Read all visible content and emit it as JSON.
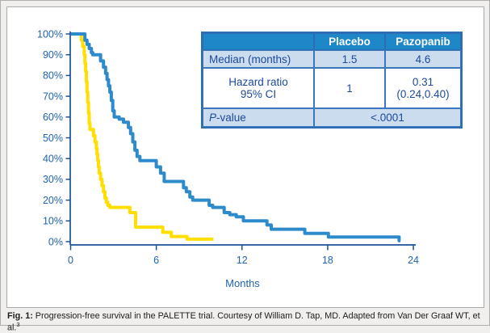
{
  "figure": {
    "caption_prefix": "Fig. 1:",
    "caption_text": " Progression-free survival in the PALETTE trial. Courtesy of William D. Tap, MD. Adapted from Van Der Graaf WT, et al.",
    "caption_superscript": "3"
  },
  "table": {
    "col_headers": {
      "placebo": "Placebo",
      "pazopanib": "Pazopanib"
    },
    "row_median": {
      "label": "Median (months)",
      "placebo": "1.5",
      "pazopanib": "4.6"
    },
    "row_hazard": {
      "label_line1": "Hazard ratio",
      "label_line2": "95% CI",
      "placebo": "1",
      "pazopanib_line1": "0.31",
      "pazopanib_line2": "(0.24,0.40)"
    },
    "row_pvalue": {
      "label_italic": "P",
      "label_rest": "-value",
      "value": "<.0001"
    }
  },
  "colors": {
    "table_header_blue": "#1e87c8",
    "table_row_light_blue": "#cbdcef",
    "table_border_blue": "#2e6db4",
    "axis_blue": "#1a5096",
    "tick_label_blue": "#2063ae",
    "curve_blue": "#2e8bcb",
    "curve_yellow": "#ffde00"
  },
  "chart_data": {
    "type": "line",
    "subtype": "kaplan-meier-step",
    "title": "",
    "xlabel": "Months",
    "ylabel": "",
    "xlim": [
      0,
      24
    ],
    "ylim": [
      0,
      100
    ],
    "grid": false,
    "legend": "none (groups identified in embedded table)",
    "xticks": [
      {
        "v": 0,
        "label": "0"
      },
      {
        "v": 6,
        "label": "6"
      },
      {
        "v": 12,
        "label": "12"
      },
      {
        "v": 18,
        "label": "18"
      },
      {
        "v": 24,
        "label": "24"
      }
    ],
    "yticks": [
      {
        "v": 0,
        "label": "0%"
      },
      {
        "v": 10,
        "label": "10%"
      },
      {
        "v": 20,
        "label": "20%"
      },
      {
        "v": 30,
        "label": "30%"
      },
      {
        "v": 40,
        "label": "40%"
      },
      {
        "v": 50,
        "label": "50%"
      },
      {
        "v": 60,
        "label": "60%"
      },
      {
        "v": 70,
        "label": "70%"
      },
      {
        "v": 80,
        "label": "80%"
      },
      {
        "v": 90,
        "label": "90%"
      },
      {
        "v": 100,
        "label": "100%"
      }
    ],
    "series": [
      {
        "name": "Placebo",
        "color": "#ffde00",
        "median_months": 1.5,
        "end_x": 10.0,
        "steps": [
          [
            0,
            100
          ],
          [
            0.75,
            97
          ],
          [
            0.85,
            94
          ],
          [
            0.95,
            90
          ],
          [
            1.0,
            86
          ],
          [
            1.05,
            82
          ],
          [
            1.1,
            77
          ],
          [
            1.15,
            72
          ],
          [
            1.2,
            67
          ],
          [
            1.25,
            62
          ],
          [
            1.3,
            57
          ],
          [
            1.35,
            54
          ],
          [
            1.6,
            51
          ],
          [
            1.7,
            48
          ],
          [
            1.8,
            45
          ],
          [
            1.85,
            42
          ],
          [
            1.9,
            39
          ],
          [
            1.95,
            36
          ],
          [
            2.0,
            33
          ],
          [
            2.1,
            30
          ],
          [
            2.2,
            27
          ],
          [
            2.3,
            24
          ],
          [
            2.4,
            21
          ],
          [
            2.5,
            19
          ],
          [
            2.6,
            17.5
          ],
          [
            2.75,
            16.5
          ],
          [
            4.15,
            14
          ],
          [
            4.55,
            7
          ],
          [
            6.45,
            4.5
          ],
          [
            7.05,
            2.5
          ],
          [
            8.15,
            1.2
          ]
        ]
      },
      {
        "name": "Pazopanib",
        "color": "#2e8bcb",
        "median_months": 4.6,
        "end_x": 23.1,
        "steps": [
          [
            0,
            100
          ],
          [
            1.0,
            97
          ],
          [
            1.15,
            95
          ],
          [
            1.3,
            93
          ],
          [
            1.45,
            91
          ],
          [
            1.55,
            90
          ],
          [
            2.1,
            87
          ],
          [
            2.3,
            84
          ],
          [
            2.45,
            81
          ],
          [
            2.55,
            78
          ],
          [
            2.65,
            75
          ],
          [
            2.75,
            72
          ],
          [
            2.85,
            68
          ],
          [
            2.95,
            63
          ],
          [
            3.05,
            60
          ],
          [
            3.4,
            59
          ],
          [
            3.7,
            57.5
          ],
          [
            4.05,
            55
          ],
          [
            4.2,
            52
          ],
          [
            4.35,
            48
          ],
          [
            4.5,
            44
          ],
          [
            4.65,
            41
          ],
          [
            4.85,
            39
          ],
          [
            6.0,
            36
          ],
          [
            6.3,
            33
          ],
          [
            6.55,
            29
          ],
          [
            7.9,
            26
          ],
          [
            8.1,
            24
          ],
          [
            8.35,
            21.5
          ],
          [
            8.55,
            20
          ],
          [
            9.7,
            17.5
          ],
          [
            9.95,
            16.5
          ],
          [
            10.75,
            14
          ],
          [
            11.15,
            13
          ],
          [
            11.6,
            12
          ],
          [
            12.1,
            10
          ],
          [
            13.75,
            8
          ],
          [
            14.05,
            6
          ],
          [
            16.4,
            4
          ],
          [
            18.05,
            2.2
          ],
          [
            23.0,
            0.5
          ]
        ]
      }
    ]
  }
}
